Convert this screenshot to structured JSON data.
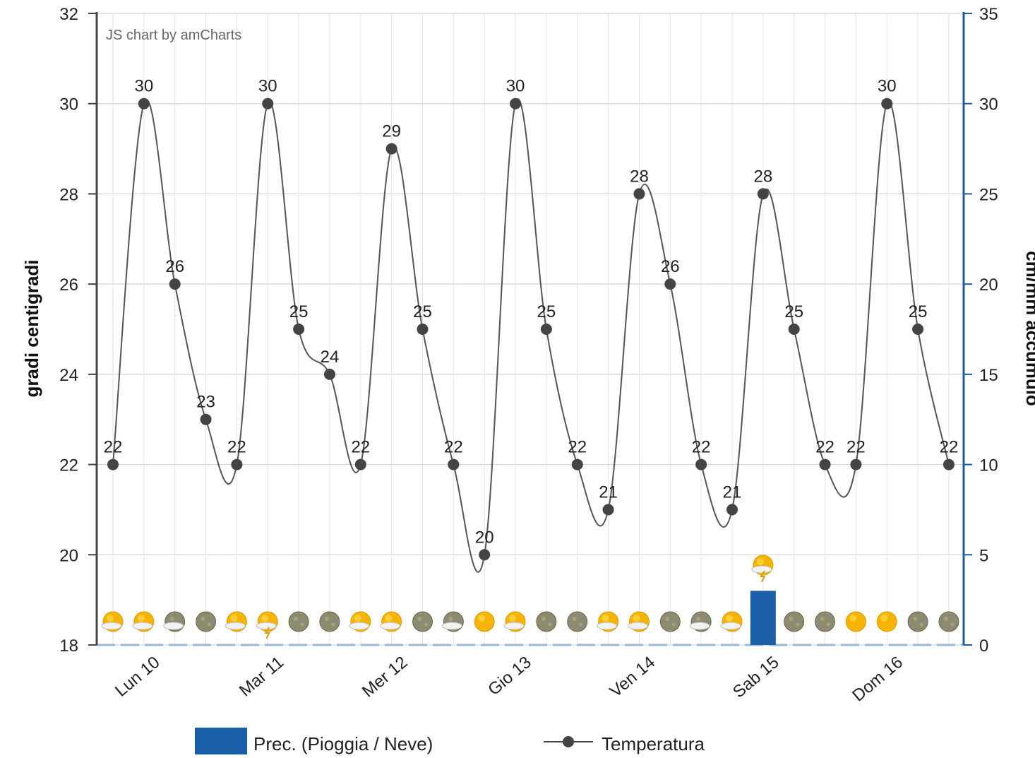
{
  "chart_data": {
    "type": "line",
    "credit": "JS chart by amCharts",
    "ylabel_left": "gradi centigradi",
    "ylabel_right": "cm/mm accumulo",
    "ylim_left": [
      18,
      32
    ],
    "yticks_left": [
      18,
      20,
      22,
      24,
      26,
      28,
      30,
      32
    ],
    "ylim_right": [
      0,
      35
    ],
    "yticks_right": [
      0,
      5,
      10,
      15,
      20,
      25,
      30,
      35
    ],
    "day_labels": [
      "Lun 10",
      "Mar 11",
      "Mer 12",
      "Gio 13",
      "Ven 14",
      "Sab 15",
      "Dom 16"
    ],
    "temperature": {
      "name": "Temperatura",
      "values": [
        22,
        30,
        26,
        23,
        22,
        30,
        25,
        24,
        22,
        29,
        25,
        22,
        20,
        30,
        25,
        22,
        21,
        28,
        26,
        22,
        21,
        28,
        25,
        22,
        22,
        30,
        25,
        22
      ]
    },
    "precipitation": {
      "name": "Prec. (Pioggia / Neve)",
      "values": [
        0,
        0,
        0,
        0,
        0,
        0,
        0,
        0,
        0,
        0,
        0,
        0,
        0,
        0,
        0,
        0,
        0,
        0,
        0,
        0,
        0,
        3,
        0,
        0,
        0,
        0,
        0,
        0
      ]
    },
    "weather_icons": [
      "sun-cloud",
      "sun-cloud",
      "moon-cloud",
      "moon",
      "sun-cloud",
      "sun-cloud-lightning",
      "moon",
      "moon",
      "sun-cloud",
      "sun-cloud",
      "moon",
      "moon-cloud",
      "sun",
      "sun-cloud",
      "moon",
      "moon",
      "sun-cloud",
      "sun-cloud",
      "moon",
      "moon-cloud",
      "sun-cloud",
      "sun-storm",
      "moon",
      "moon",
      "sun",
      "sun",
      "moon",
      "moon"
    ],
    "legend": [
      {
        "type": "column",
        "label": "Prec. (Pioggia / Neve)",
        "color": "#1a5ea8"
      },
      {
        "type": "line",
        "label": "Temperatura",
        "color": "#444444"
      }
    ],
    "colors": {
      "line": "#555555",
      "point": "#444444",
      "column": "#1a5ea8",
      "right_axis": "#1a5ea8",
      "left_axis": "#444444",
      "grid": "#d4d4d4",
      "zero_line": "#9ab8d8",
      "sun": "#f5b400",
      "moon": "#8d8a70"
    }
  }
}
